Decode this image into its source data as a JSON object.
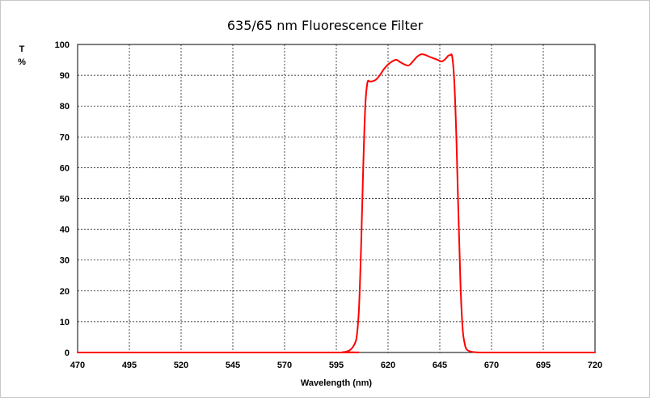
{
  "chart_data": {
    "type": "line",
    "title": "635/65 nm Fluorescence Filter",
    "xlabel": "Wavelength (nm)",
    "ylabel_top": "T",
    "ylabel_bottom": "%",
    "xlim": [
      470,
      720
    ],
    "ylim": [
      0,
      100
    ],
    "xticks": [
      470,
      495,
      520,
      545,
      570,
      595,
      620,
      645,
      670,
      695,
      720
    ],
    "yticks": [
      0,
      10,
      20,
      30,
      40,
      50,
      60,
      70,
      80,
      90,
      100
    ],
    "grid": true,
    "line_color": "#ff0000",
    "series": [
      {
        "x": [
          470,
          595,
          598,
          600,
          602,
          604,
          605,
          606,
          607,
          608,
          609,
          610,
          611,
          612,
          614,
          616,
          618,
          620,
          622,
          624,
          626,
          628,
          630,
          632,
          634,
          636,
          638,
          640,
          642,
          644,
          646,
          648,
          649,
          650,
          651,
          652,
          653,
          654,
          655,
          656,
          657,
          658,
          660,
          662,
          665,
          668,
          720
        ],
        "y": [
          0,
          0,
          0.1,
          0.3,
          1,
          3,
          6,
          15,
          35,
          60,
          80,
          87.5,
          88,
          88,
          88.5,
          90,
          92,
          93.5,
          94.5,
          95,
          94.2,
          93.5,
          93.2,
          94.5,
          96,
          96.8,
          96.6,
          96,
          95.5,
          95,
          94.5,
          95.5,
          96.3,
          96.5,
          96,
          88,
          70,
          45,
          22,
          8,
          3,
          1,
          0.3,
          0.1,
          0,
          0,
          0
        ]
      }
    ]
  }
}
